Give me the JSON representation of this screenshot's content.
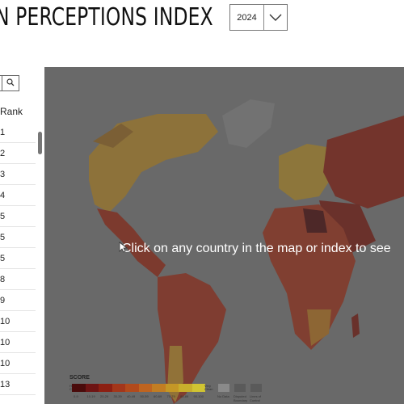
{
  "header": {
    "title_partial": "N PERCEPTIONS INDEX",
    "year": "2024"
  },
  "sidebar": {
    "column_header": "Rank",
    "ranks": [
      "1",
      "2",
      "3",
      "4",
      "5",
      "5",
      "5",
      "8",
      "9",
      "10",
      "10",
      "10",
      "13"
    ]
  },
  "map": {
    "hint": "Click on any country in the map or index to see"
  },
  "legend": {
    "title": "SCORE",
    "left_label": "Highly Corrupt",
    "right_label": "Very Clean",
    "ticks": [
      "0-9",
      "10-19",
      "20-29",
      "30-39",
      "40-49",
      "50-59",
      "60-69",
      "70-79",
      "80-89",
      "90-100"
    ],
    "no_data": "No Data",
    "disputed": "Disputed Boundary",
    "control": "Lines of Control",
    "colors": [
      "#4a0b0b",
      "#6e1414",
      "#8c1f12",
      "#a3361a",
      "#b24a1c",
      "#bf6420",
      "#c27d22",
      "#c49726",
      "#c8ae2c",
      "#d0c432"
    ]
  }
}
